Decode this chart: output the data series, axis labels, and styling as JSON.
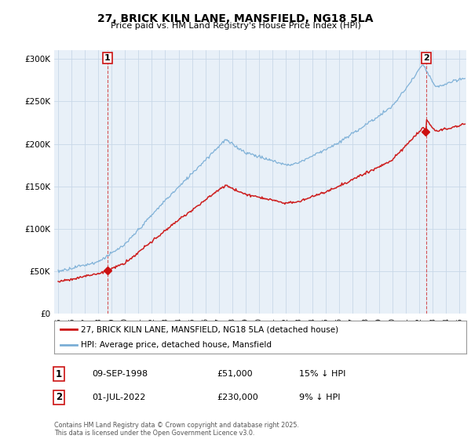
{
  "title_line1": "27, BRICK KILN LANE, MANSFIELD, NG18 5LA",
  "title_line2": "Price paid vs. HM Land Registry's House Price Index (HPI)",
  "ylim": [
    0,
    310000
  ],
  "yticks": [
    0,
    50000,
    100000,
    150000,
    200000,
    250000,
    300000
  ],
  "ytick_labels": [
    "£0",
    "£50K",
    "£100K",
    "£150K",
    "£200K",
    "£250K",
    "£300K"
  ],
  "hpi_color": "#7aaed6",
  "price_color": "#cc1111",
  "bg_plot_color": "#e8f0f8",
  "marker1_year": 1998.69,
  "marker1_value": 51000,
  "marker1_label": "1",
  "marker2_year": 2022.5,
  "marker2_value": 230000,
  "marker2_label": "2",
  "legend_line1": "27, BRICK KILN LANE, MANSFIELD, NG18 5LA (detached house)",
  "legend_line2": "HPI: Average price, detached house, Mansfield",
  "table_row1": [
    "1",
    "09-SEP-1998",
    "£51,000",
    "15% ↓ HPI"
  ],
  "table_row2": [
    "2",
    "01-JUL-2022",
    "£230,000",
    "9% ↓ HPI"
  ],
  "footnote": "Contains HM Land Registry data © Crown copyright and database right 2025.\nThis data is licensed under the Open Government Licence v3.0.",
  "background_color": "#ffffff",
  "grid_color": "#c8d8e8",
  "xlim_left": 1994.7,
  "xlim_right": 2025.5
}
